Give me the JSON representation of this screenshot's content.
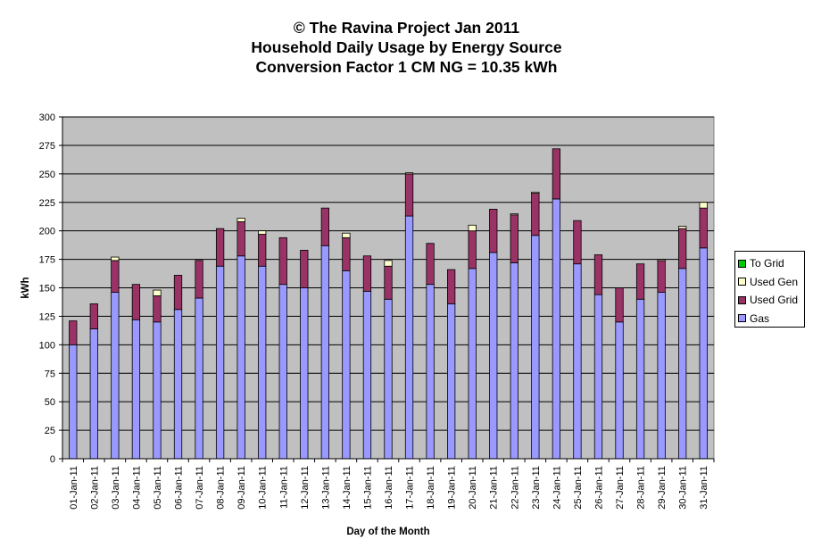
{
  "chart_data": {
    "type": "bar",
    "stacked": true,
    "title_lines": [
      "© The Ravina Project Jan 2011",
      "Household Daily Usage by Energy Source",
      "Conversion Factor 1 CM NG = 10.35 kWh"
    ],
    "xlabel": "Day of the Month",
    "ylabel": "kWh",
    "ylim": [
      0,
      300
    ],
    "yticks": [
      0,
      25,
      50,
      75,
      100,
      125,
      150,
      175,
      200,
      225,
      250,
      275,
      300
    ],
    "grid": true,
    "legend_position": "right",
    "categories": [
      "01-Jan-11",
      "02-Jan-11",
      "03-Jan-11",
      "04-Jan-11",
      "05-Jan-11",
      "06-Jan-11",
      "07-Jan-11",
      "08-Jan-11",
      "09-Jan-11",
      "10-Jan-11",
      "11-Jan-11",
      "12-Jan-11",
      "13-Jan-11",
      "14-Jan-11",
      "15-Jan-11",
      "16-Jan-11",
      "17-Jan-11",
      "18-Jan-11",
      "19-Jan-11",
      "20-Jan-11",
      "21-Jan-11",
      "22-Jan-11",
      "23-Jan-11",
      "24-Jan-11",
      "25-Jan-11",
      "26-Jan-11",
      "27-Jan-11",
      "28-Jan-11",
      "29-Jan-11",
      "30-Jan-11",
      "31-Jan-11"
    ],
    "series": [
      {
        "name": "Gas",
        "color": "#9999FF",
        "values": [
          100,
          114,
          146,
          122,
          120,
          131,
          141,
          169,
          178,
          169,
          153,
          150,
          187,
          165,
          147,
          140,
          213,
          153,
          136,
          167,
          181,
          172,
          196,
          228,
          171,
          144,
          120,
          140,
          146,
          167,
          185
        ]
      },
      {
        "name": "Used Grid",
        "color": "#993366",
        "values": [
          21,
          22,
          28,
          31,
          23,
          30,
          33,
          33,
          30,
          28,
          41,
          33,
          33,
          29,
          31,
          29,
          37,
          36,
          30,
          33,
          38,
          42,
          37,
          44,
          38,
          35,
          30,
          31,
          28,
          35,
          35
        ]
      },
      {
        "name": "Used Gen",
        "color": "#FFFFCC",
        "values": [
          0,
          0,
          3,
          0,
          5,
          0,
          0,
          0,
          3,
          3,
          0,
          0,
          0,
          4,
          0,
          5,
          1,
          0,
          0,
          5,
          0,
          1,
          1,
          0,
          0,
          0,
          0,
          0,
          1,
          2,
          5
        ]
      },
      {
        "name": "To Grid",
        "color": "#00CC00",
        "values": [
          0,
          0,
          0,
          0,
          0,
          0,
          0,
          0,
          0,
          0,
          0,
          0,
          0,
          0,
          0,
          0,
          0,
          0,
          0,
          0,
          0,
          0,
          0,
          0,
          0,
          0,
          0,
          0,
          0,
          0,
          0
        ]
      }
    ],
    "legend_order": [
      "To Grid",
      "Used Gen",
      "Used Grid",
      "Gas"
    ],
    "plot_background": "#C0C0C0"
  }
}
